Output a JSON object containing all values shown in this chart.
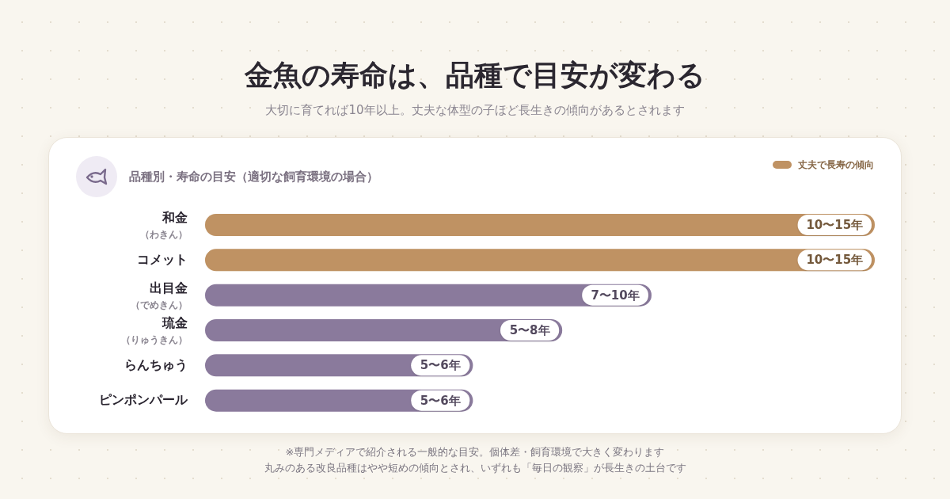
{
  "chart_data": {
    "type": "bar",
    "orientation": "horizontal",
    "stacked": true,
    "tick_labels": "y",
    "xlim": [
      0,
      15
    ],
    "title": "金魚の寿命は、品種で目安が変わる",
    "subtitle": "大切に育てれば10年以上。丈夫な体型の子ほど長生きの傾向があるとされます",
    "categories": [
      "和金（わきん）",
      "コメット",
      "出目金（でめきん）",
      "琉金（りゅうきん）",
      "らんちゅう",
      "ピンポンパール"
    ],
    "series": [
      {
        "name": "丈夫で長寿の傾向",
        "color": "#bf9263",
        "values": [
          15,
          15,
          null,
          null,
          null,
          null
        ],
        "value_labels": [
          "10〜15年",
          "10〜15年",
          null,
          null,
          null,
          null
        ]
      },
      {
        "color": "#8a7a9c",
        "values": [
          null,
          null,
          10,
          8,
          6,
          6
        ],
        "value_labels": [
          null,
          null,
          "7〜10年",
          "5〜8年",
          "5〜6年",
          "5〜6年"
        ]
      }
    ],
    "legend": "top right",
    "annotations": [
      "品種別・寿命の目安（適切な飼育環境の場合）",
      "※専門メディアで紹介される一般的な目安。個体差・飼育環境で大きく変わります",
      "丸みのある改良品種はやや短めの傾向とされ、いずれも「毎日の観察」が長生きの土台です"
    ]
  }
}
